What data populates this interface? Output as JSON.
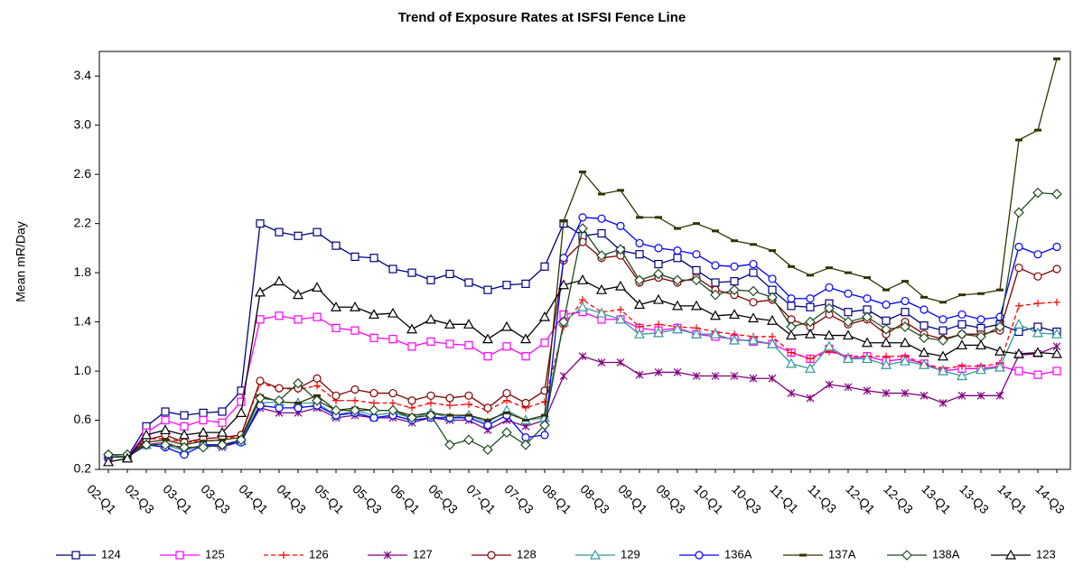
{
  "chart_data": {
    "type": "line",
    "title": "Trend of Exposure Rates at ISFSI  Fence Line",
    "ylabel": "Mean mR/Day",
    "categories": [
      "02-Q1",
      null,
      "02-Q3",
      null,
      "03-Q1",
      null,
      "03-Q3",
      null,
      "04-Q1",
      null,
      "04-Q3",
      null,
      "05-Q1",
      null,
      "05-Q3",
      null,
      "06-Q1",
      null,
      "06-Q3",
      null,
      "07-Q1",
      null,
      "07-Q3",
      null,
      "08-Q1",
      null,
      "08-Q3",
      null,
      "09-Q1",
      null,
      "09-Q3",
      null,
      "10-Q1",
      null,
      "10-Q3",
      null,
      "11-Q1",
      null,
      "11-Q3",
      null,
      "12-Q1",
      null,
      "12-Q3",
      null,
      "13-Q1",
      null,
      "13-Q3",
      null,
      "14-Q1",
      null,
      "14-Q3"
    ],
    "ylim": [
      0.2,
      3.6
    ],
    "yticks": [
      0.2,
      0.6,
      {
        "value": 1.0,
        "label": "1.0"
      },
      1.4,
      1.8,
      2.2,
      2.6,
      {
        "value": 3.0,
        "label": "3.0"
      },
      3.4
    ],
    "legend": "bottom",
    "series": [
      {
        "name": "124",
        "color": "#000080",
        "marker": "square",
        "dashed": false,
        "values": [
          0.3,
          0.3,
          0.55,
          0.67,
          0.64,
          0.66,
          0.67,
          0.84,
          2.2,
          2.13,
          2.1,
          2.13,
          2.02,
          1.93,
          1.92,
          1.83,
          1.8,
          1.74,
          1.79,
          1.72,
          1.66,
          1.7,
          1.71,
          1.85,
          2.2,
          2.1,
          2.12,
          1.98,
          1.95,
          1.87,
          1.92,
          1.82,
          1.72,
          1.73,
          1.8,
          1.66,
          1.53,
          1.52,
          1.55,
          1.48,
          1.5,
          1.41,
          1.48,
          1.37,
          1.33,
          1.38,
          1.35,
          1.38,
          1.32,
          1.36,
          1.32
        ]
      },
      {
        "name": "125",
        "color": "#ff00ff",
        "marker": "square",
        "dashed": false,
        "values": [
          0.3,
          0.3,
          0.5,
          0.6,
          0.55,
          0.6,
          0.58,
          0.75,
          1.42,
          1.45,
          1.42,
          1.44,
          1.35,
          1.33,
          1.27,
          1.26,
          1.2,
          1.24,
          1.22,
          1.21,
          1.12,
          1.2,
          1.12,
          1.23,
          1.46,
          1.48,
          1.42,
          1.42,
          1.35,
          1.33,
          1.35,
          1.3,
          1.28,
          1.26,
          1.24,
          1.22,
          1.15,
          1.1,
          1.18,
          1.1,
          1.12,
          1.08,
          1.1,
          1.06,
          1.0,
          1.02,
          1.02,
          1.04,
          1.0,
          0.97,
          1.0
        ]
      },
      {
        "name": "126",
        "color": "#ff0000",
        "marker": "plus",
        "dashed": true,
        "values": [
          0.3,
          0.3,
          0.45,
          0.45,
          0.42,
          0.43,
          0.44,
          0.48,
          0.9,
          0.86,
          0.85,
          0.88,
          0.76,
          0.76,
          0.74,
          0.74,
          0.7,
          0.74,
          0.72,
          0.73,
          0.68,
          0.76,
          0.7,
          0.75,
          1.36,
          1.58,
          1.48,
          1.5,
          1.36,
          1.38,
          1.36,
          1.35,
          1.32,
          1.3,
          1.28,
          1.28,
          1.15,
          1.1,
          1.16,
          1.12,
          1.12,
          1.12,
          1.12,
          1.06,
          1.02,
          1.04,
          1.04,
          1.06,
          1.53,
          1.55,
          1.56
        ]
      },
      {
        "name": "127",
        "color": "#800080",
        "marker": "star",
        "dashed": false,
        "values": [
          0.3,
          0.3,
          0.4,
          0.42,
          0.36,
          0.4,
          0.38,
          0.43,
          0.7,
          0.66,
          0.66,
          0.7,
          0.62,
          0.64,
          0.62,
          0.62,
          0.58,
          0.62,
          0.6,
          0.6,
          0.52,
          0.6,
          0.55,
          0.6,
          0.96,
          1.12,
          1.07,
          1.07,
          0.97,
          0.99,
          0.99,
          0.96,
          0.96,
          0.96,
          0.94,
          0.94,
          0.82,
          0.78,
          0.89,
          0.87,
          0.84,
          0.82,
          0.82,
          0.8,
          0.74,
          0.8,
          0.8,
          0.8,
          1.13,
          1.14,
          1.2
        ]
      },
      {
        "name": "128",
        "color": "#800000",
        "marker": "circle",
        "dashed": false,
        "values": [
          0.3,
          0.3,
          0.44,
          0.48,
          0.42,
          0.45,
          0.46,
          0.48,
          0.92,
          0.86,
          0.86,
          0.94,
          0.8,
          0.85,
          0.82,
          0.82,
          0.76,
          0.8,
          0.78,
          0.8,
          0.7,
          0.82,
          0.74,
          0.84,
          1.9,
          2.05,
          1.92,
          1.94,
          1.72,
          1.76,
          1.72,
          1.76,
          1.66,
          1.62,
          1.56,
          1.58,
          1.42,
          1.36,
          1.46,
          1.38,
          1.42,
          1.3,
          1.4,
          1.3,
          1.26,
          1.3,
          1.3,
          1.33,
          1.84,
          1.77,
          1.83
        ]
      },
      {
        "name": "129",
        "color": "#339999",
        "marker": "triangle",
        "dashed": false,
        "values": [
          0.32,
          0.3,
          0.4,
          0.4,
          0.35,
          0.4,
          0.4,
          0.43,
          0.74,
          0.75,
          0.74,
          0.74,
          0.64,
          0.68,
          0.64,
          0.66,
          0.62,
          0.66,
          0.62,
          0.64,
          0.58,
          0.68,
          0.6,
          0.62,
          1.4,
          1.52,
          1.47,
          1.42,
          1.3,
          1.31,
          1.34,
          1.3,
          1.3,
          1.25,
          1.25,
          1.22,
          1.06,
          1.02,
          1.2,
          1.1,
          1.1,
          1.05,
          1.08,
          1.05,
          1.0,
          0.96,
          1.01,
          1.03,
          1.38,
          1.31,
          1.3
        ]
      },
      {
        "name": "136A",
        "color": "#0000ff",
        "marker": "circle",
        "dashed": false,
        "values": [
          0.3,
          0.3,
          0.4,
          0.38,
          0.32,
          0.4,
          0.4,
          0.42,
          0.72,
          0.7,
          0.7,
          0.72,
          0.64,
          0.66,
          0.62,
          0.64,
          0.6,
          0.62,
          0.62,
          0.62,
          0.56,
          0.64,
          0.46,
          0.48,
          1.92,
          2.25,
          2.24,
          2.18,
          2.04,
          2.0,
          1.98,
          1.95,
          1.86,
          1.85,
          1.87,
          1.75,
          1.59,
          1.59,
          1.68,
          1.63,
          1.59,
          1.54,
          1.57,
          1.5,
          1.42,
          1.46,
          1.42,
          1.44,
          2.01,
          1.95,
          2.01
        ]
      },
      {
        "name": "137A",
        "color": "#333300",
        "marker": "dash",
        "dashed": false,
        "values": [
          0.3,
          0.3,
          0.42,
          0.44,
          0.4,
          0.43,
          0.44,
          0.46,
          0.8,
          0.75,
          0.74,
          0.8,
          0.68,
          0.7,
          0.68,
          0.68,
          0.64,
          0.66,
          0.64,
          0.64,
          0.6,
          0.66,
          0.6,
          0.64,
          2.22,
          2.62,
          2.44,
          2.47,
          2.25,
          2.25,
          2.16,
          2.2,
          2.14,
          2.06,
          2.03,
          1.98,
          1.85,
          1.78,
          1.84,
          1.8,
          1.76,
          1.66,
          1.73,
          1.6,
          1.56,
          1.62,
          1.63,
          1.66,
          2.88,
          2.96,
          3.54
        ]
      },
      {
        "name": "138A",
        "color": "#1f4d1f",
        "marker": "diamond",
        "dashed": false,
        "values": [
          0.32,
          0.32,
          0.4,
          0.4,
          0.38,
          0.38,
          0.4,
          0.44,
          0.78,
          0.76,
          0.9,
          0.76,
          0.68,
          0.68,
          0.68,
          0.68,
          0.62,
          0.64,
          0.4,
          0.44,
          0.36,
          0.5,
          0.4,
          0.56,
          1.4,
          2.16,
          1.94,
          1.99,
          1.74,
          1.79,
          1.74,
          1.74,
          1.62,
          1.66,
          1.65,
          1.6,
          1.36,
          1.4,
          1.51,
          1.4,
          1.44,
          1.34,
          1.36,
          1.27,
          1.25,
          1.3,
          1.28,
          1.36,
          2.29,
          2.45,
          2.44
        ]
      },
      {
        "name": "123",
        "color": "#000000",
        "marker": "triangle",
        "dashed": false,
        "values": [
          0.26,
          0.29,
          0.48,
          0.52,
          0.48,
          0.5,
          0.5,
          0.66,
          1.64,
          1.73,
          1.62,
          1.68,
          1.52,
          1.52,
          1.46,
          1.47,
          1.34,
          1.42,
          1.38,
          1.38,
          1.26,
          1.36,
          1.26,
          1.44,
          1.7,
          1.74,
          1.66,
          1.69,
          1.54,
          1.58,
          1.53,
          1.53,
          1.45,
          1.46,
          1.43,
          1.41,
          1.29,
          1.3,
          1.29,
          1.29,
          1.23,
          1.23,
          1.23,
          1.15,
          1.12,
          1.21,
          1.21,
          1.16,
          1.14,
          1.15,
          1.14
        ]
      }
    ]
  }
}
